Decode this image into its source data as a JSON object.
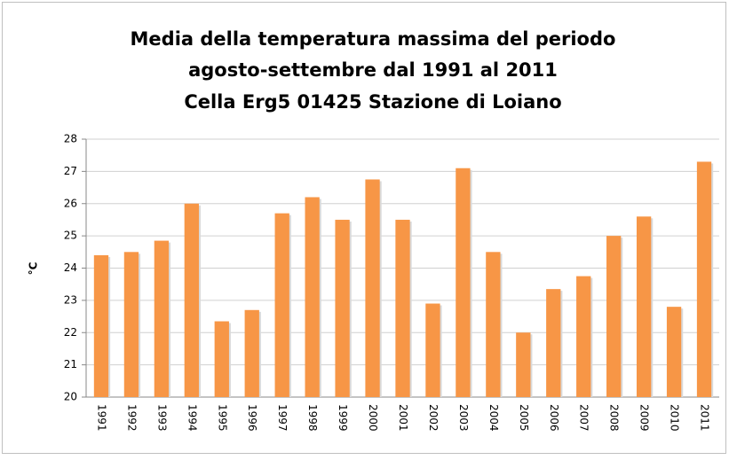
{
  "chart_data": {
    "type": "bar",
    "title": [
      "Media della temperatura massima del periodo",
      "agosto-settembre dal 1991 al 2011",
      "Cella Erg5 01425 Stazione di Loiano"
    ],
    "ylabel": "°C",
    "categories": [
      "1991",
      "1992",
      "1993",
      "1994",
      "1995",
      "1996",
      "1997",
      "1998",
      "1999",
      "2000",
      "2001",
      "2002",
      "2003",
      "2004",
      "2005",
      "2006",
      "2007",
      "2008",
      "2009",
      "2010",
      "2011"
    ],
    "values": [
      24.4,
      24.5,
      24.85,
      26.0,
      22.35,
      22.7,
      25.7,
      26.2,
      25.5,
      26.75,
      25.5,
      22.9,
      27.1,
      24.5,
      22.0,
      23.35,
      23.75,
      25.0,
      25.6,
      22.8,
      27.3
    ],
    "color": "#f79646",
    "ylim": [
      20,
      28
    ],
    "yticks": [
      20,
      21,
      22,
      23,
      24,
      25,
      26,
      27,
      28
    ],
    "grid": true
  }
}
